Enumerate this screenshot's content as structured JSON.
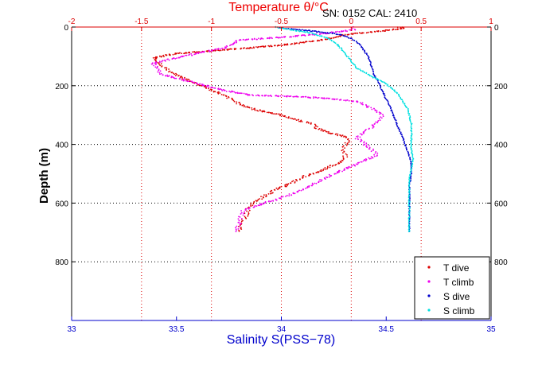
{
  "figure": {
    "serial_text": "SN: 0152  CAL: 2410"
  },
  "chart_data": {
    "type": "scatter",
    "title": "Temperature θ/°C",
    "xlabel": "Salinity S(PSS−78)",
    "ylabel": "Depth (m)",
    "y_axis": {
      "range": [
        0,
        1000
      ],
      "inverted": true,
      "ticks": [
        0,
        200,
        400,
        600,
        800
      ],
      "tick_labels": [
        "0",
        "200",
        "400",
        "600",
        "800"
      ],
      "grid": true
    },
    "x_bottom_axis": {
      "quantity": "Salinity",
      "range": [
        33,
        35
      ],
      "ticks": [
        33,
        33.5,
        34,
        34.5,
        35
      ],
      "tick_labels": [
        "33",
        "33.5",
        "34",
        "34.5",
        "35"
      ],
      "color": "#0000cc"
    },
    "x_top_axis": {
      "quantity": "Temperature",
      "range": [
        -2,
        1
      ],
      "ticks": [
        -2,
        -1.5,
        -1,
        -0.5,
        0,
        0.5,
        1
      ],
      "tick_labels": [
        "-2",
        "-1.5",
        "-1",
        "-0.5",
        "0",
        "0.5",
        "1"
      ],
      "color": "#cc0000",
      "grid": true
    },
    "legend_position": "bottom-right",
    "series": [
      {
        "name": "T dive",
        "axis": "temperature",
        "color": "#dd0000",
        "points": [
          [
            0.34,
            0
          ],
          [
            0.38,
            5
          ],
          [
            0.24,
            12
          ],
          [
            -0.02,
            25
          ],
          [
            -0.22,
            45
          ],
          [
            -0.5,
            62
          ],
          [
            -0.9,
            78
          ],
          [
            -1.25,
            90
          ],
          [
            -1.42,
            105
          ],
          [
            -1.38,
            120
          ],
          [
            -1.34,
            135
          ],
          [
            -1.3,
            150
          ],
          [
            -1.22,
            170
          ],
          [
            -1.12,
            190
          ],
          [
            -1.02,
            210
          ],
          [
            -0.95,
            225
          ],
          [
            -0.86,
            245
          ],
          [
            -0.8,
            262
          ],
          [
            -0.7,
            280
          ],
          [
            -0.5,
            300
          ],
          [
            -0.36,
            320
          ],
          [
            -0.28,
            330
          ],
          [
            -0.24,
            345
          ],
          [
            -0.16,
            360
          ],
          [
            -0.04,
            375
          ],
          [
            -0.02,
            390
          ],
          [
            -0.06,
            410
          ],
          [
            -0.05,
            430
          ],
          [
            -0.04,
            450
          ],
          [
            -0.12,
            470
          ],
          [
            -0.22,
            490
          ],
          [
            -0.34,
            510
          ],
          [
            -0.42,
            530
          ],
          [
            -0.52,
            550
          ],
          [
            -0.62,
            575
          ],
          [
            -0.7,
            600
          ],
          [
            -0.74,
            620
          ],
          [
            -0.75,
            640
          ],
          [
            -0.77,
            660
          ],
          [
            -0.79,
            680
          ],
          [
            -0.8,
            700
          ]
        ]
      },
      {
        "name": "T climb",
        "axis": "temperature",
        "color": "#ee00ee",
        "points": [
          [
            0.0,
            0
          ],
          [
            0.02,
            10
          ],
          [
            -0.25,
            25
          ],
          [
            -0.5,
            35
          ],
          [
            -0.8,
            45
          ],
          [
            -0.9,
            70
          ],
          [
            -1.1,
            90
          ],
          [
            -1.3,
            110
          ],
          [
            -1.42,
            125
          ],
          [
            -1.38,
            140
          ],
          [
            -1.36,
            160
          ],
          [
            -1.12,
            190
          ],
          [
            -0.92,
            215
          ],
          [
            -0.72,
            232
          ],
          [
            -0.35,
            238
          ],
          [
            -0.15,
            244
          ],
          [
            0.05,
            255
          ],
          [
            0.12,
            270
          ],
          [
            0.18,
            285
          ],
          [
            0.22,
            300
          ],
          [
            0.2,
            320
          ],
          [
            0.15,
            340
          ],
          [
            0.08,
            362
          ],
          [
            0.04,
            378
          ],
          [
            0.08,
            392
          ],
          [
            0.12,
            408
          ],
          [
            0.16,
            422
          ],
          [
            0.18,
            438
          ],
          [
            0.1,
            455
          ],
          [
            0.0,
            475
          ],
          [
            -0.1,
            495
          ],
          [
            -0.2,
            518
          ],
          [
            -0.3,
            542
          ],
          [
            -0.4,
            565
          ],
          [
            -0.52,
            585
          ],
          [
            -0.65,
            605
          ],
          [
            -0.77,
            625
          ],
          [
            -0.79,
            645
          ],
          [
            -0.8,
            668
          ],
          [
            -0.82,
            690
          ],
          [
            -0.83,
            700
          ]
        ]
      },
      {
        "name": "S dive",
        "axis": "salinity",
        "color": "#0000cc",
        "points": [
          [
            33.98,
            0
          ],
          [
            34.02,
            5
          ],
          [
            34.1,
            10
          ],
          [
            34.2,
            18
          ],
          [
            34.28,
            25
          ],
          [
            34.32,
            35
          ],
          [
            34.36,
            50
          ],
          [
            34.38,
            65
          ],
          [
            34.4,
            85
          ],
          [
            34.42,
            110
          ],
          [
            34.43,
            135
          ],
          [
            34.44,
            160
          ],
          [
            34.46,
            185
          ],
          [
            34.48,
            215
          ],
          [
            34.5,
            245
          ],
          [
            34.52,
            275
          ],
          [
            34.54,
            310
          ],
          [
            34.56,
            345
          ],
          [
            34.58,
            380
          ],
          [
            34.6,
            420
          ],
          [
            34.62,
            460
          ],
          [
            34.62,
            500
          ],
          [
            34.61,
            540
          ],
          [
            34.61,
            580
          ],
          [
            34.61,
            620
          ],
          [
            34.61,
            660
          ],
          [
            34.61,
            700
          ]
        ]
      },
      {
        "name": "S climb",
        "axis": "salinity",
        "color": "#00e0e0",
        "points": [
          [
            33.97,
            0
          ],
          [
            34.05,
            10
          ],
          [
            34.14,
            20
          ],
          [
            34.22,
            38
          ],
          [
            34.26,
            55
          ],
          [
            34.28,
            70
          ],
          [
            34.3,
            85
          ],
          [
            34.33,
            115
          ],
          [
            34.36,
            140
          ],
          [
            34.42,
            165
          ],
          [
            34.48,
            185
          ],
          [
            34.52,
            205
          ],
          [
            34.56,
            230
          ],
          [
            34.58,
            255
          ],
          [
            34.6,
            275
          ],
          [
            34.61,
            300
          ],
          [
            34.62,
            330
          ],
          [
            34.62,
            360
          ],
          [
            34.62,
            390
          ],
          [
            34.62,
            420
          ],
          [
            34.63,
            450
          ],
          [
            34.62,
            480
          ],
          [
            34.61,
            520
          ],
          [
            34.61,
            560
          ],
          [
            34.61,
            600
          ],
          [
            34.61,
            640
          ],
          [
            34.61,
            680
          ],
          [
            34.61,
            700
          ]
        ]
      }
    ]
  }
}
